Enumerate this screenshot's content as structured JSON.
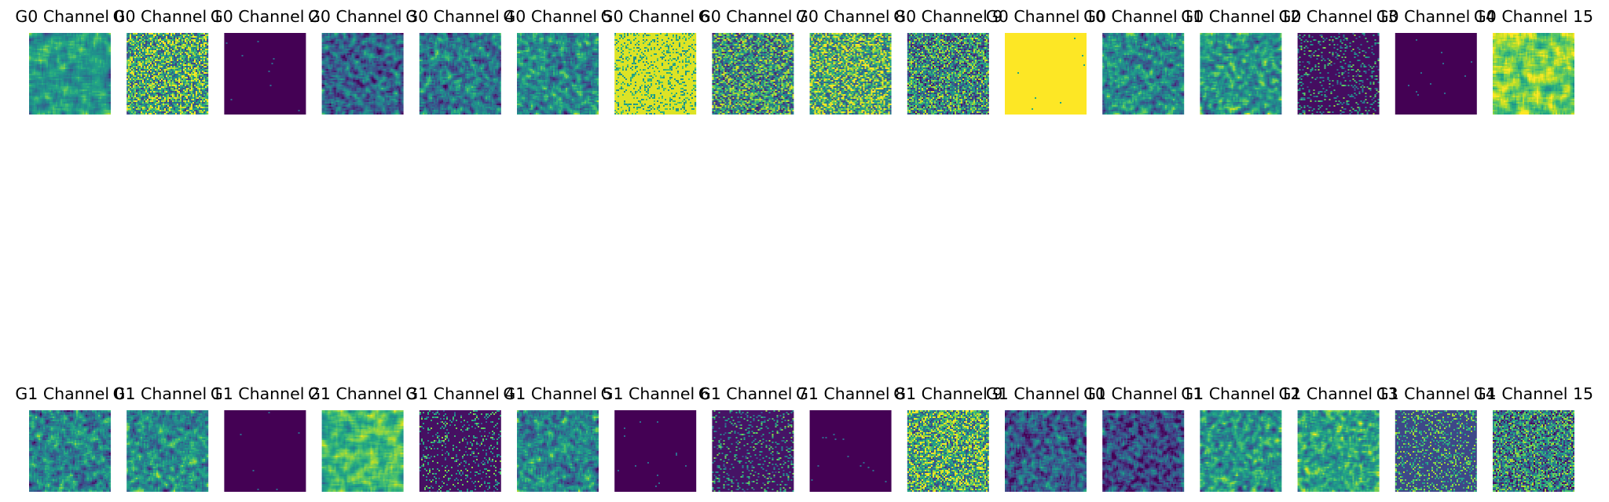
{
  "chart_data": [
    {
      "type": "heatmap",
      "row": "G0",
      "colormap": "viridis",
      "panels": [
        {
          "title": "G0 Channel 0",
          "mean_level": 0.55,
          "texture": "coarse mottled"
        },
        {
          "title": "G0 Channel 1",
          "mean_level": 0.62,
          "texture": "fine grainy"
        },
        {
          "title": "G0 Channel 2",
          "mean_level": 0.0,
          "texture": "uniform"
        },
        {
          "title": "G0 Channel 3",
          "mean_level": 0.33,
          "texture": "mottled"
        },
        {
          "title": "G0 Channel 4",
          "mean_level": 0.4,
          "texture": "mottled"
        },
        {
          "title": "G0 Channel 5",
          "mean_level": 0.48,
          "texture": "mottled"
        },
        {
          "title": "G0 Channel 6",
          "mean_level": 0.95,
          "texture": "speckled"
        },
        {
          "title": "G0 Channel 7",
          "mean_level": 0.52,
          "texture": "fine grainy"
        },
        {
          "title": "G0 Channel 8",
          "mean_level": 0.66,
          "texture": "fine grainy"
        },
        {
          "title": "G0 Channel 9",
          "mean_level": 0.5,
          "texture": "fine grainy"
        },
        {
          "title": "G0 Channel 10",
          "mean_level": 1.0,
          "texture": "uniform"
        },
        {
          "title": "G0 Channel 11",
          "mean_level": 0.48,
          "texture": "mottled"
        },
        {
          "title": "G0 Channel 12",
          "mean_level": 0.52,
          "texture": "mottled"
        },
        {
          "title": "G0 Channel 13",
          "mean_level": 0.12,
          "texture": "sparse speckle"
        },
        {
          "title": "G0 Channel 14",
          "mean_level": 0.0,
          "texture": "uniform"
        },
        {
          "title": "G0 Channel 15",
          "mean_level": 0.8,
          "texture": "coarse mottled"
        }
      ]
    },
    {
      "type": "heatmap",
      "row": "G1",
      "colormap": "viridis",
      "panels": [
        {
          "title": "G1 Channel 0",
          "mean_level": 0.45,
          "texture": "mottled"
        },
        {
          "title": "G1 Channel 1",
          "mean_level": 0.47,
          "texture": "mottled"
        },
        {
          "title": "G1 Channel 2",
          "mean_level": 0.0,
          "texture": "uniform"
        },
        {
          "title": "G1 Channel 3",
          "mean_level": 0.68,
          "texture": "coarse mottled"
        },
        {
          "title": "G1 Channel 4",
          "mean_level": 0.15,
          "texture": "sparse speckle"
        },
        {
          "title": "G1 Channel 5",
          "mean_level": 0.45,
          "texture": "mottled"
        },
        {
          "title": "G1 Channel 6",
          "mean_level": 0.0,
          "texture": "uniform"
        },
        {
          "title": "G1 Channel 7",
          "mean_level": 0.18,
          "texture": "sparse speckle"
        },
        {
          "title": "G1 Channel 8",
          "mean_level": 0.0,
          "texture": "uniform"
        },
        {
          "title": "G1 Channel 9",
          "mean_level": 0.62,
          "texture": "fine grainy"
        },
        {
          "title": "G1 Channel 10",
          "mean_level": 0.28,
          "texture": "mottled"
        },
        {
          "title": "G1 Channel 11",
          "mean_level": 0.22,
          "texture": "mottled"
        },
        {
          "title": "G1 Channel 12",
          "mean_level": 0.5,
          "texture": "mottled"
        },
        {
          "title": "G1 Channel 13",
          "mean_level": 0.58,
          "texture": "mottled"
        },
        {
          "title": "G1 Channel 14",
          "mean_level": 0.22,
          "texture": "speckled"
        },
        {
          "title": "G1 Channel 15",
          "mean_level": 0.45,
          "texture": "fine grainy"
        }
      ]
    }
  ]
}
